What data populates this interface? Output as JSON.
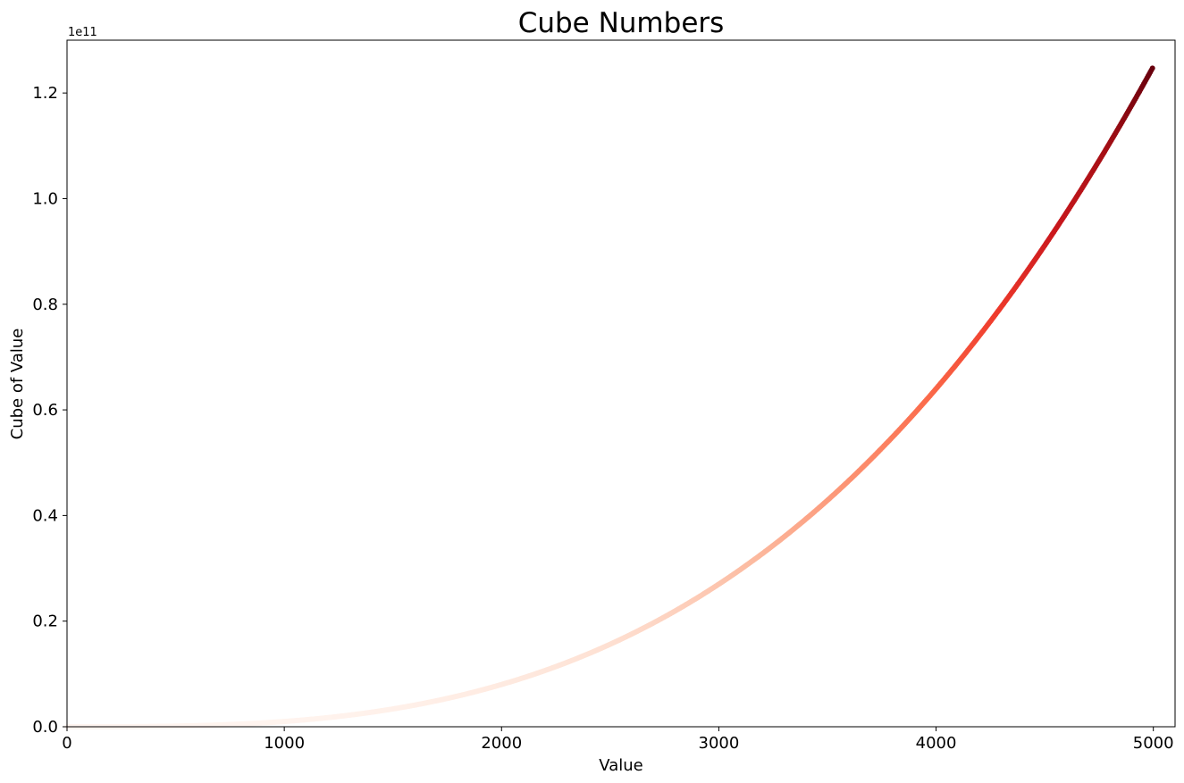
{
  "chart_data": {
    "type": "scatter",
    "title": "Cube Numbers",
    "xlabel": "Value",
    "ylabel": "Cube of Value",
    "y_offset_label": "1e11",
    "xlim": [
      0,
      5100
    ],
    "ylim": [
      0,
      1.3
    ],
    "y_scale_factor": 100000000000,
    "x_ticks": [
      0,
      1000,
      2000,
      3000,
      4000,
      5000
    ],
    "x_tick_labels": [
      "0",
      "1000",
      "2000",
      "3000",
      "4000",
      "5000"
    ],
    "y_ticks": [
      0.0,
      0.2,
      0.4,
      0.6,
      0.8,
      1.0,
      1.2
    ],
    "y_tick_labels": [
      "0.0",
      "0.2",
      "0.4",
      "0.6",
      "0.8",
      "1.0",
      "1.2"
    ],
    "grid": false,
    "colormap": "Reds",
    "colormap_stops": [
      "#fff5f0",
      "#fee0d2",
      "#fcbba1",
      "#fc9272",
      "#fb6a4a",
      "#ef3b2c",
      "#cb181d",
      "#a50f15",
      "#67000d"
    ],
    "series": [
      {
        "x_start": 1,
        "x_end": 5000,
        "function": "y = x^3",
        "sample_points": [
          {
            "x": 1000,
            "y": 0.01
          },
          {
            "x": 2000,
            "y": 0.08
          },
          {
            "x": 3000,
            "y": 0.27
          },
          {
            "x": 4000,
            "y": 0.64
          },
          {
            "x": 5000,
            "y": 1.25
          }
        ]
      }
    ]
  }
}
